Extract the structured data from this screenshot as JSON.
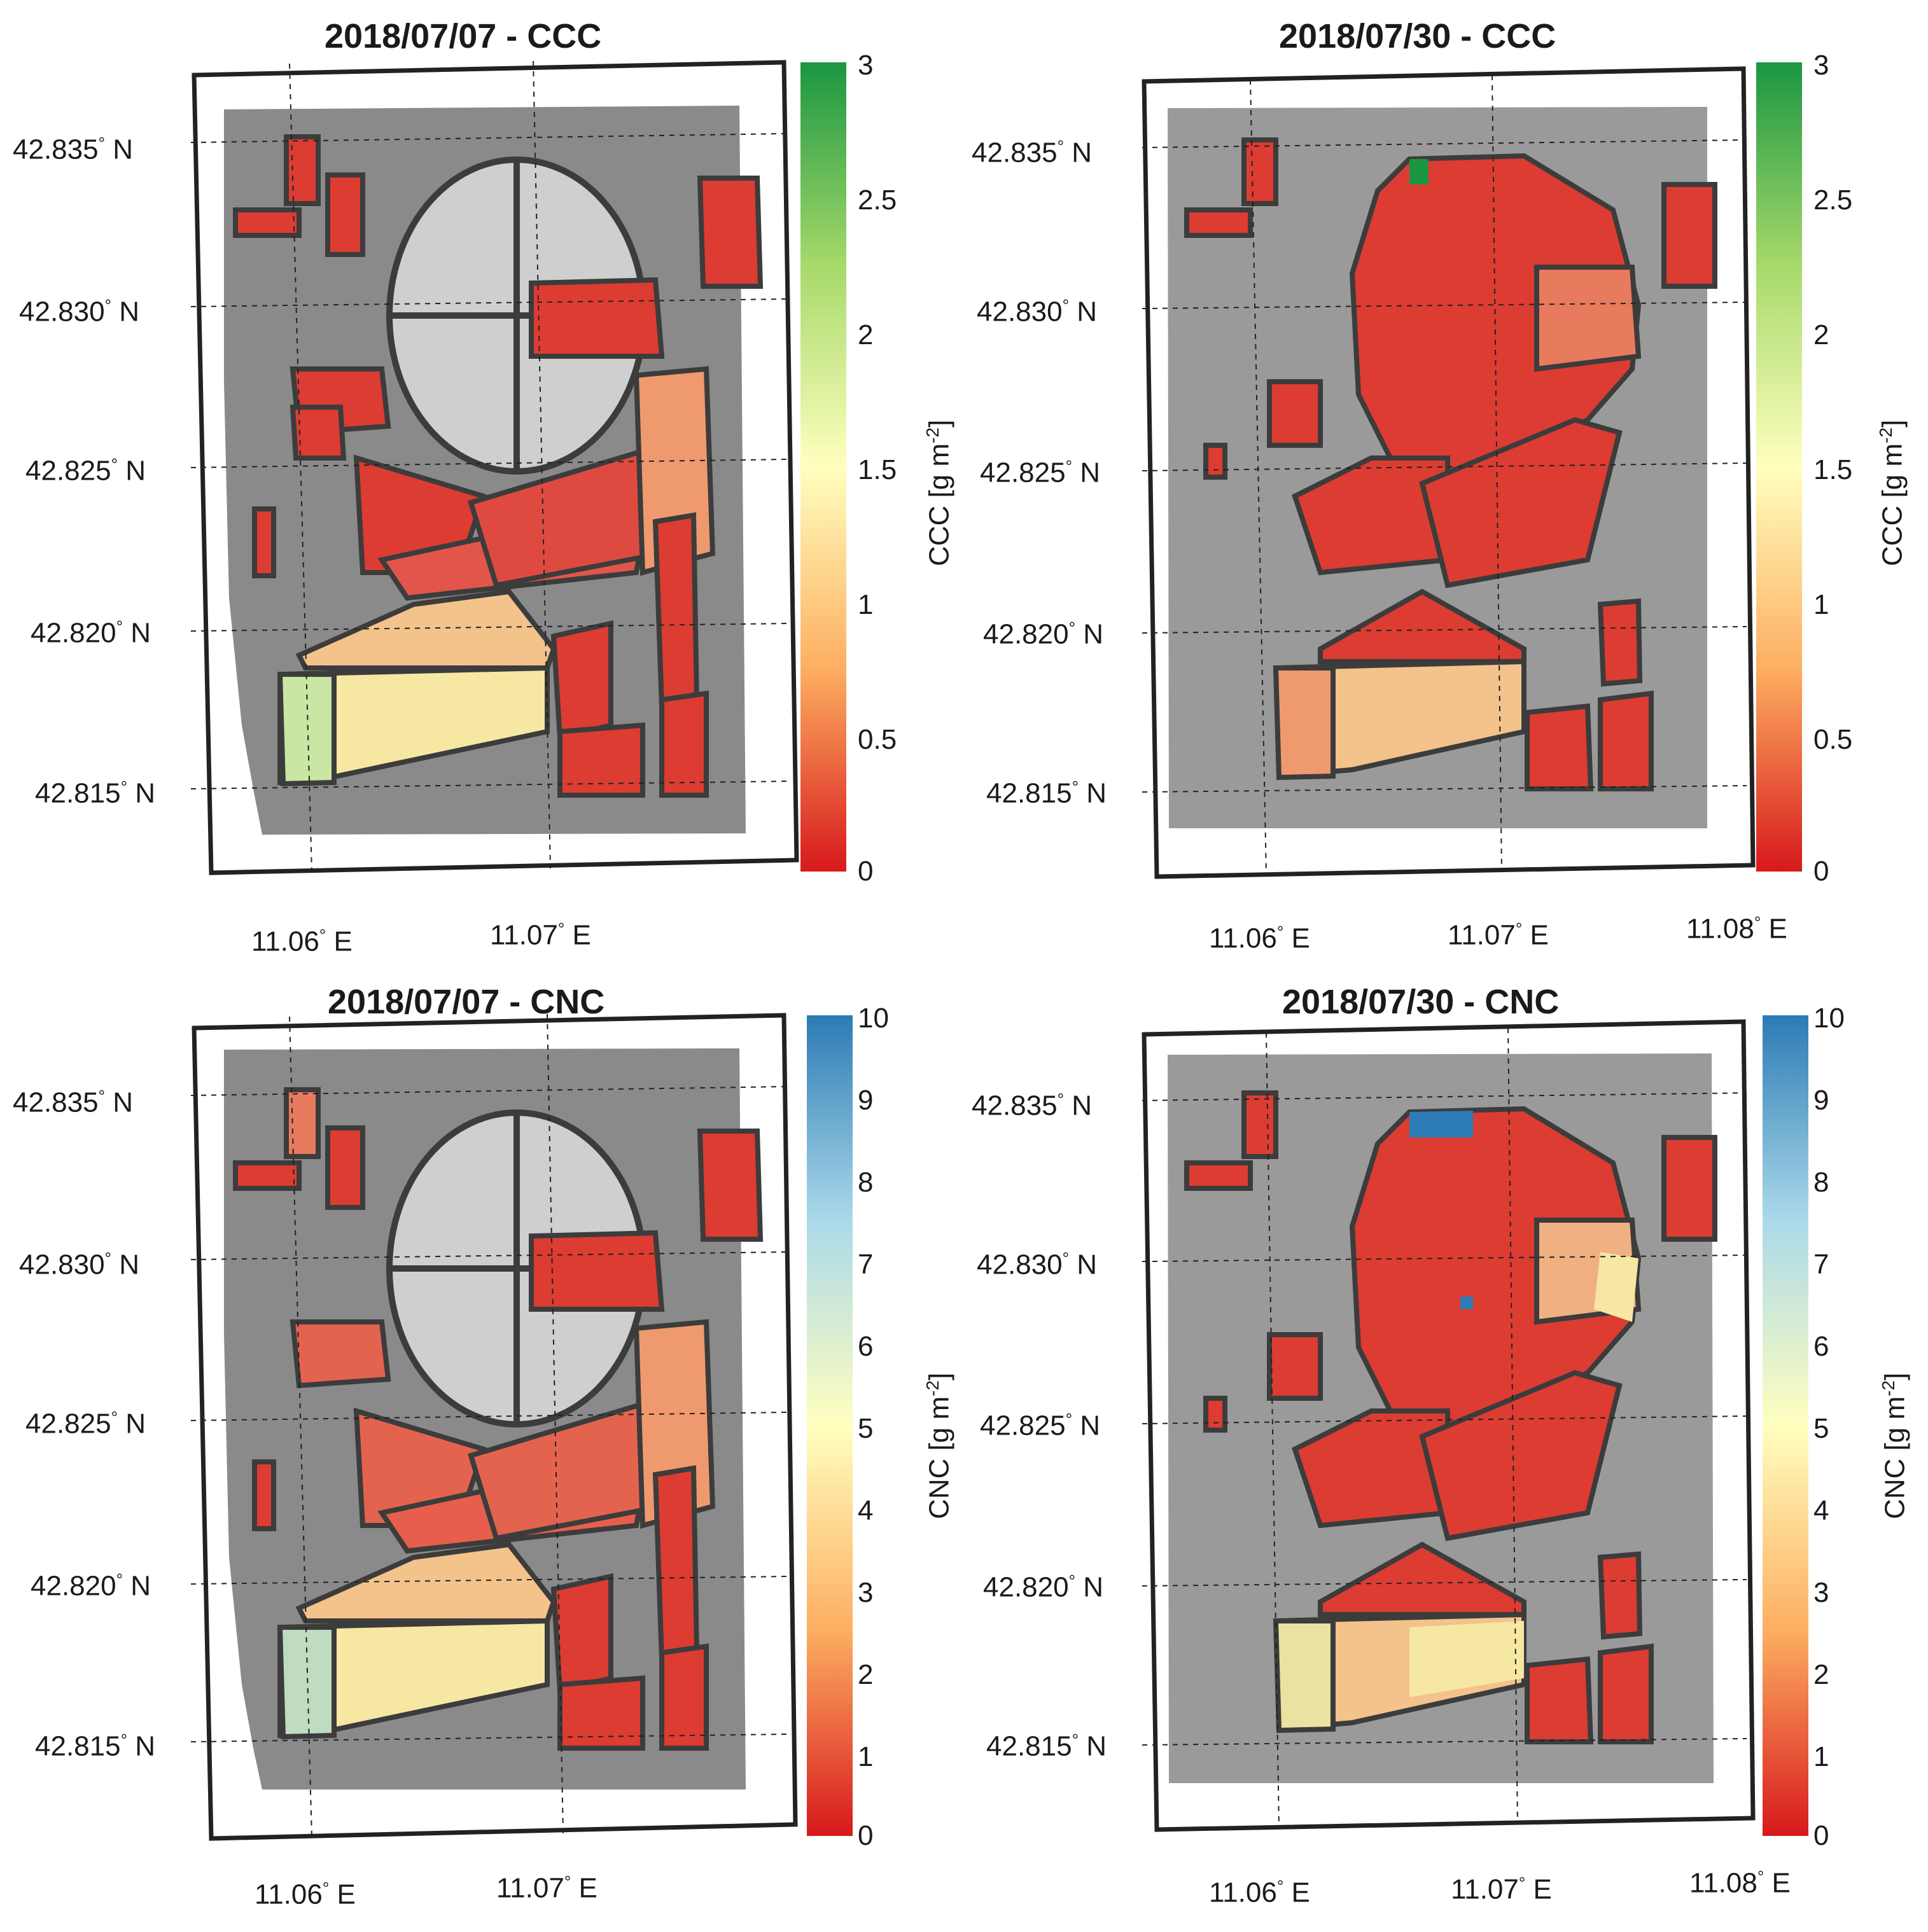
{
  "panels": [
    {
      "id": "ccc-0707",
      "title": "2018/07/07 - CCC",
      "lat_ticks": [
        "42.835",
        "42.830",
        "42.825",
        "42.820",
        "42.815"
      ],
      "lat_suffix": "N",
      "lon_ticks": [
        "11.06",
        "11.07"
      ],
      "lon_suffix": "E",
      "colorbar": {
        "label": "CCC [g m",
        "label_sup": "-2",
        "label_end": "]",
        "ticks": [
          "0",
          "0.5",
          "1",
          "1.5",
          "2",
          "2.5",
          "3"
        ],
        "min_color": "#d7191c",
        "mid_color": "#ffffbf",
        "max_color": "#1a9641"
      }
    },
    {
      "id": "ccc-0730",
      "title": "2018/07/30 - CCC",
      "lat_ticks": [
        "42.835",
        "42.830",
        "42.825",
        "42.820",
        "42.815"
      ],
      "lat_suffix": "N",
      "lon_ticks": [
        "11.06",
        "11.07",
        "11.08"
      ],
      "lon_suffix": "E",
      "colorbar": {
        "label": "CCC [g m",
        "label_sup": "-2",
        "label_end": "]",
        "ticks": [
          "0",
          "0.5",
          "1",
          "1.5",
          "2",
          "2.5",
          "3"
        ],
        "min_color": "#d7191c",
        "mid_color": "#ffffbf",
        "max_color": "#1a9641"
      }
    },
    {
      "id": "cnc-0707",
      "title": "2018/07/07 - CNC",
      "lat_ticks": [
        "42.835",
        "42.830",
        "42.825",
        "42.820",
        "42.815"
      ],
      "lat_suffix": "N",
      "lon_ticks": [
        "11.06",
        "11.07"
      ],
      "lon_suffix": "E",
      "colorbar": {
        "label": "CNC [g m",
        "label_sup": "-2",
        "label_end": "]",
        "ticks": [
          "0",
          "1",
          "2",
          "3",
          "4",
          "5",
          "6",
          "7",
          "8",
          "9",
          "10"
        ],
        "min_color": "#d7191c",
        "mid_color": "#ffffbf",
        "max_color": "#2c7bb6"
      }
    },
    {
      "id": "cnc-0730",
      "title": "2018/07/30 - CNC",
      "lat_ticks": [
        "42.835",
        "42.830",
        "42.825",
        "42.820",
        "42.815"
      ],
      "lat_suffix": "N",
      "lon_ticks": [
        "11.06",
        "11.07",
        "11.08"
      ],
      "lon_suffix": "E",
      "colorbar": {
        "label": "CNC [g m",
        "label_sup": "-2",
        "label_end": "]",
        "ticks": [
          "0",
          "1",
          "2",
          "3",
          "4",
          "5",
          "6",
          "7",
          "8",
          "9",
          "10"
        ],
        "min_color": "#d7191c",
        "mid_color": "#ffffbf",
        "max_color": "#2c7bb6"
      }
    }
  ],
  "colors": {
    "field_red": "#dc3c32",
    "field_orange": "#ef9a6e",
    "field_yellow": "#f6e7a3",
    "field_green": "#c9e6a3",
    "field_blue": "#2c7bb6",
    "outline": "#3c3c3c",
    "imagery_dark": "#5e5e5e",
    "imagery_light": "#b8b8b8"
  }
}
